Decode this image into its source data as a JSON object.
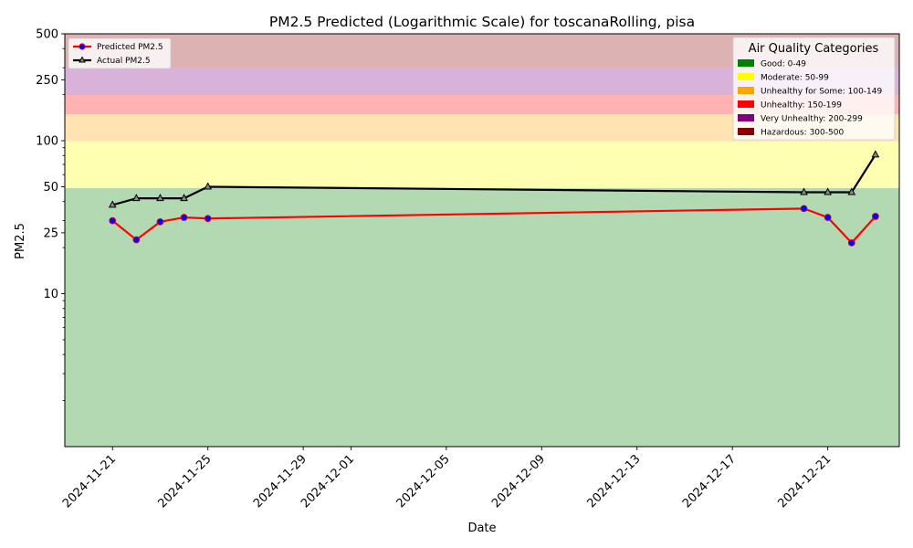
{
  "chart_data": {
    "type": "line",
    "title": "PM2.5 Predicted (Logarithmic Scale) for toscanaRolling, pisa",
    "xlabel": "Date",
    "ylabel": "PM2.5",
    "yscale": "log",
    "ylim": [
      1,
      500
    ],
    "xlim": [
      "2024-11-19",
      "2024-12-24"
    ],
    "yticks": [
      10,
      25,
      50,
      100,
      250,
      500
    ],
    "ytick_labels": [
      "10",
      "25",
      "50",
      "100",
      "250",
      "500"
    ],
    "xticks": [
      "2024-11-21",
      "2024-11-25",
      "2024-11-29",
      "2024-12-01",
      "2024-12-05",
      "2024-12-09",
      "2024-12-13",
      "2024-12-17",
      "2024-12-21"
    ],
    "grid": false,
    "series": [
      {
        "name": "Predicted PM2.5",
        "color": "#ff0000",
        "marker_color": "#0000ff",
        "x": [
          "2024-11-21",
          "2024-11-22",
          "2024-11-23",
          "2024-11-24",
          "2024-11-25",
          "2024-12-20",
          "2024-12-21",
          "2024-12-22",
          "2024-12-23"
        ],
        "y": [
          30,
          22.5,
          29.5,
          31.5,
          31,
          36,
          31.5,
          21.5,
          32
        ]
      },
      {
        "name": "Actual PM2.5",
        "color": "#000000",
        "marker_color": "#000000",
        "x": [
          "2024-11-21",
          "2024-11-22",
          "2024-11-23",
          "2024-11-24",
          "2024-11-25",
          "2024-12-20",
          "2024-12-21",
          "2024-12-22",
          "2024-12-23"
        ],
        "y": [
          38,
          42,
          42,
          42,
          50,
          46,
          46,
          46,
          81
        ]
      }
    ],
    "bands": [
      {
        "label": "Good: 0-49",
        "from": 0,
        "to": 49,
        "color": "#008000"
      },
      {
        "label": "Moderate: 50-99",
        "from": 49,
        "to": 99,
        "color": "#ffff00"
      },
      {
        "label": "Unhealthy for Some: 100-149",
        "from": 99,
        "to": 149,
        "color": "#ffa500"
      },
      {
        "label": "Unhealthy: 150-199",
        "from": 149,
        "to": 199,
        "color": "#ff0000"
      },
      {
        "label": "Very Unhealthy: 200-299",
        "from": 199,
        "to": 299,
        "color": "#800080"
      },
      {
        "label": "Hazardous: 300-500",
        "from": 299,
        "to": 500,
        "color": "#8b0000"
      }
    ],
    "legend": {
      "placement": "upper-left"
    },
    "category_legend": {
      "title": "Air Quality Categories",
      "placement": "upper-right"
    }
  }
}
